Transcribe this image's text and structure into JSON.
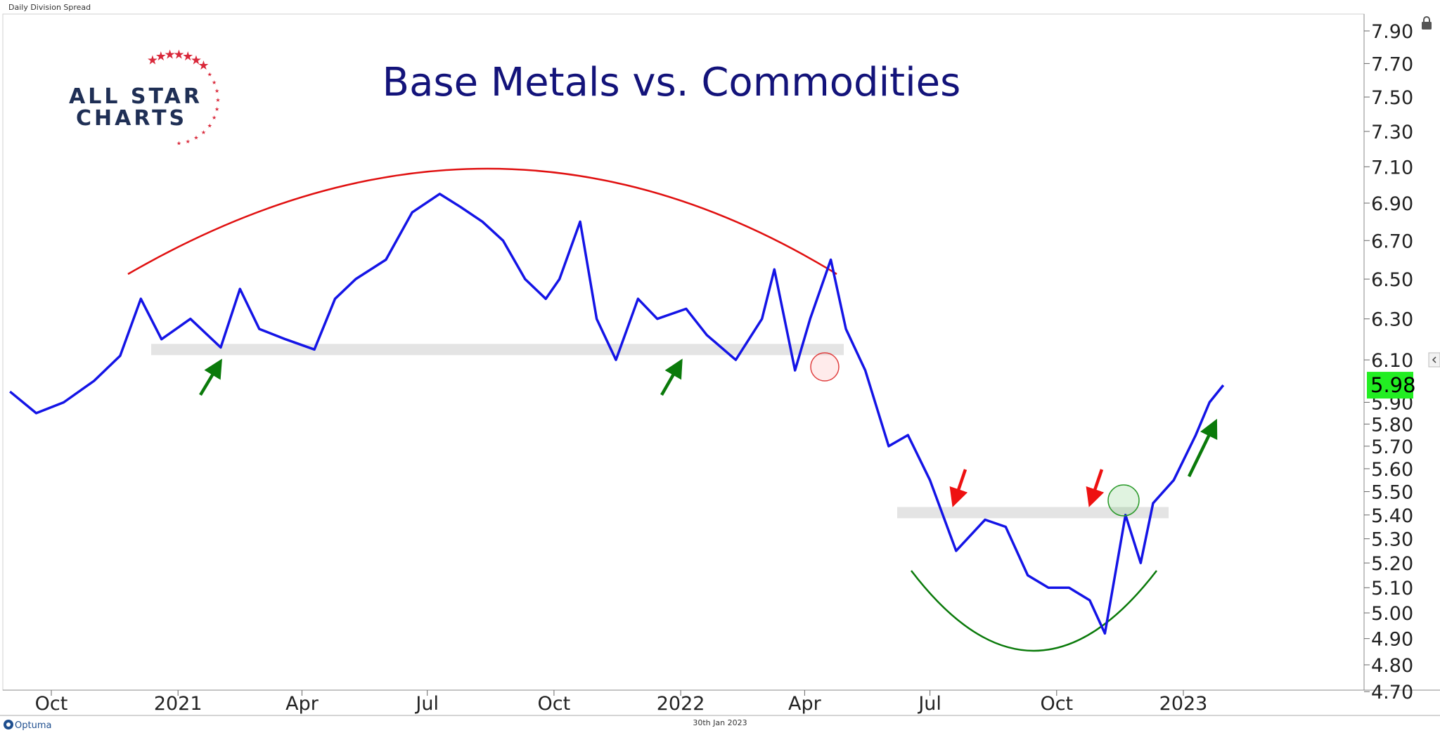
{
  "window": {
    "panel_label": "Daily Division Spread",
    "date_label": "30th Jan 2023",
    "brand": "Optuma"
  },
  "logo": {
    "line1": "ALL STAR",
    "line2": "CHARTS"
  },
  "colors": {
    "line": "#1414e6",
    "support_band": "#e4e4e4",
    "price_box": "#22ee22",
    "top_arc": "#e01010",
    "bottom_arc": "#0a7a0a",
    "green_arrow": "#0a7a0a",
    "red_arrow": "#ee1111",
    "star": "#d9283a",
    "title": "#13137a"
  },
  "chart_data": {
    "type": "line",
    "title": "Base Metals vs. Commodities",
    "xlabel": "",
    "ylabel": "",
    "ylim": [
      4.7,
      8.0
    ],
    "y_ticks": [
      "7.90",
      "7.70",
      "7.50",
      "7.30",
      "7.10",
      "6.90",
      "6.70",
      "6.50",
      "6.30",
      "6.10",
      "5.90",
      "5.80",
      "5.70",
      "5.60",
      "5.50",
      "5.40",
      "5.30",
      "5.20",
      "5.10",
      "5.00",
      "4.90",
      "4.80",
      "4.70"
    ],
    "x_ticks": [
      "Oct",
      "2021",
      "Apr",
      "Jul",
      "Oct",
      "2022",
      "Apr",
      "Jul",
      "Oct",
      "2023"
    ],
    "last_value": "5.98",
    "grid": false,
    "log_scale": true,
    "series": [
      {
        "x": [
          "2020-09-01",
          "2020-09-20",
          "2020-10-10",
          "2020-11-01",
          "2020-11-20",
          "2020-12-05",
          "2020-12-20",
          "2021-01-10",
          "2021-02-01",
          "2021-02-15",
          "2021-03-01",
          "2021-03-20",
          "2021-04-10",
          "2021-04-25",
          "2021-05-10",
          "2021-06-01",
          "2021-06-20",
          "2021-07-10",
          "2021-07-25",
          "2021-08-10",
          "2021-08-25",
          "2021-09-10",
          "2021-09-25",
          "2021-10-05",
          "2021-10-20",
          "2021-11-01",
          "2021-11-15",
          "2021-12-01",
          "2021-12-15",
          "2022-01-05",
          "2022-01-20",
          "2022-02-10",
          "2022-03-01",
          "2022-03-10",
          "2022-03-25",
          "2022-04-05",
          "2022-04-20",
          "2022-05-01",
          "2022-05-15",
          "2022-06-01",
          "2022-06-15",
          "2022-07-01",
          "2022-07-20",
          "2022-08-10",
          "2022-08-25",
          "2022-09-10",
          "2022-09-25",
          "2022-10-10",
          "2022-10-25",
          "2022-11-05",
          "2022-11-20",
          "2022-12-01",
          "2022-12-10",
          "2022-12-25",
          "2023-01-10",
          "2023-01-20",
          "2023-01-30"
        ],
        "y": [
          5.95,
          5.85,
          5.9,
          6.0,
          6.12,
          6.4,
          6.2,
          6.3,
          6.16,
          6.45,
          6.25,
          6.2,
          6.15,
          6.4,
          6.5,
          6.6,
          6.85,
          6.95,
          6.88,
          6.8,
          6.7,
          6.5,
          6.4,
          6.5,
          6.8,
          6.3,
          6.1,
          6.4,
          6.3,
          6.35,
          6.22,
          6.1,
          6.3,
          6.55,
          6.05,
          6.3,
          6.6,
          6.25,
          6.05,
          5.7,
          5.75,
          5.55,
          5.25,
          5.38,
          5.35,
          5.15,
          5.1,
          5.1,
          5.05,
          4.92,
          5.4,
          5.2,
          5.45,
          5.55,
          5.75,
          5.9,
          5.98
        ]
      }
    ],
    "annotations": {
      "support_levels": [
        6.15,
        5.41
      ]
    }
  }
}
